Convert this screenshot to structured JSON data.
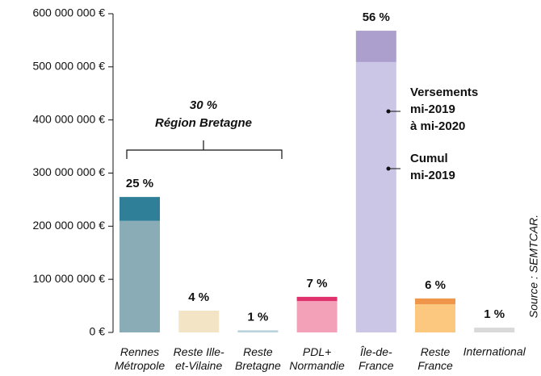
{
  "chart_data": {
    "type": "stacked-bar",
    "categories": [
      "Rennes\nMétropole",
      "Reste Ille-\net-Vilaine",
      "Reste\nBretagne",
      "PDL+\nNormandie",
      "Île-de-\nFrance",
      "Reste\nFrance",
      "International"
    ],
    "series": [
      {
        "name": "Cumul\nmi-2019",
        "colors": [
          "#8aacb6",
          "#f3e4c6",
          "#b9d3dc",
          "#f3a1b8",
          "#cbc6e6",
          "#fcc77e",
          "#d9d9d9"
        ],
        "values": [
          210000000,
          41000000,
          4000000,
          59000000,
          509000000,
          53000000,
          9000000
        ]
      },
      {
        "name": "Versements\nmi-2019\nà mi-2020",
        "colors": [
          "#2e7f97",
          "#f3e4c6",
          "#b9d3dc",
          "#e0336e",
          "#ac9fce",
          "#f0964a",
          "#d9d9d9"
        ],
        "values": [
          45000000,
          0,
          0,
          8000000,
          59000000,
          11000000,
          0
        ]
      }
    ],
    "share_labels": [
      "25 %",
      "4 %",
      "1 %",
      "7 %",
      "56 %",
      "6 %",
      "1 %"
    ],
    "annotation": "30 %\nRégion Bretagne",
    "source": "Source : SEMTCAR.",
    "ylim": [
      0,
      600000000
    ],
    "yticks": [
      {
        "value": 0,
        "label": "0 €"
      },
      {
        "value": 100000000,
        "label": "100 000 000 €"
      },
      {
        "value": 200000000,
        "label": "200 000 000 €"
      },
      {
        "value": 300000000,
        "label": "300 000 000 €"
      },
      {
        "value": 400000000,
        "label": "400 000 000 €"
      },
      {
        "value": 500000000,
        "label": "500 000 000 €"
      },
      {
        "value": 600000000,
        "label": "600 000 000 €"
      }
    ]
  }
}
